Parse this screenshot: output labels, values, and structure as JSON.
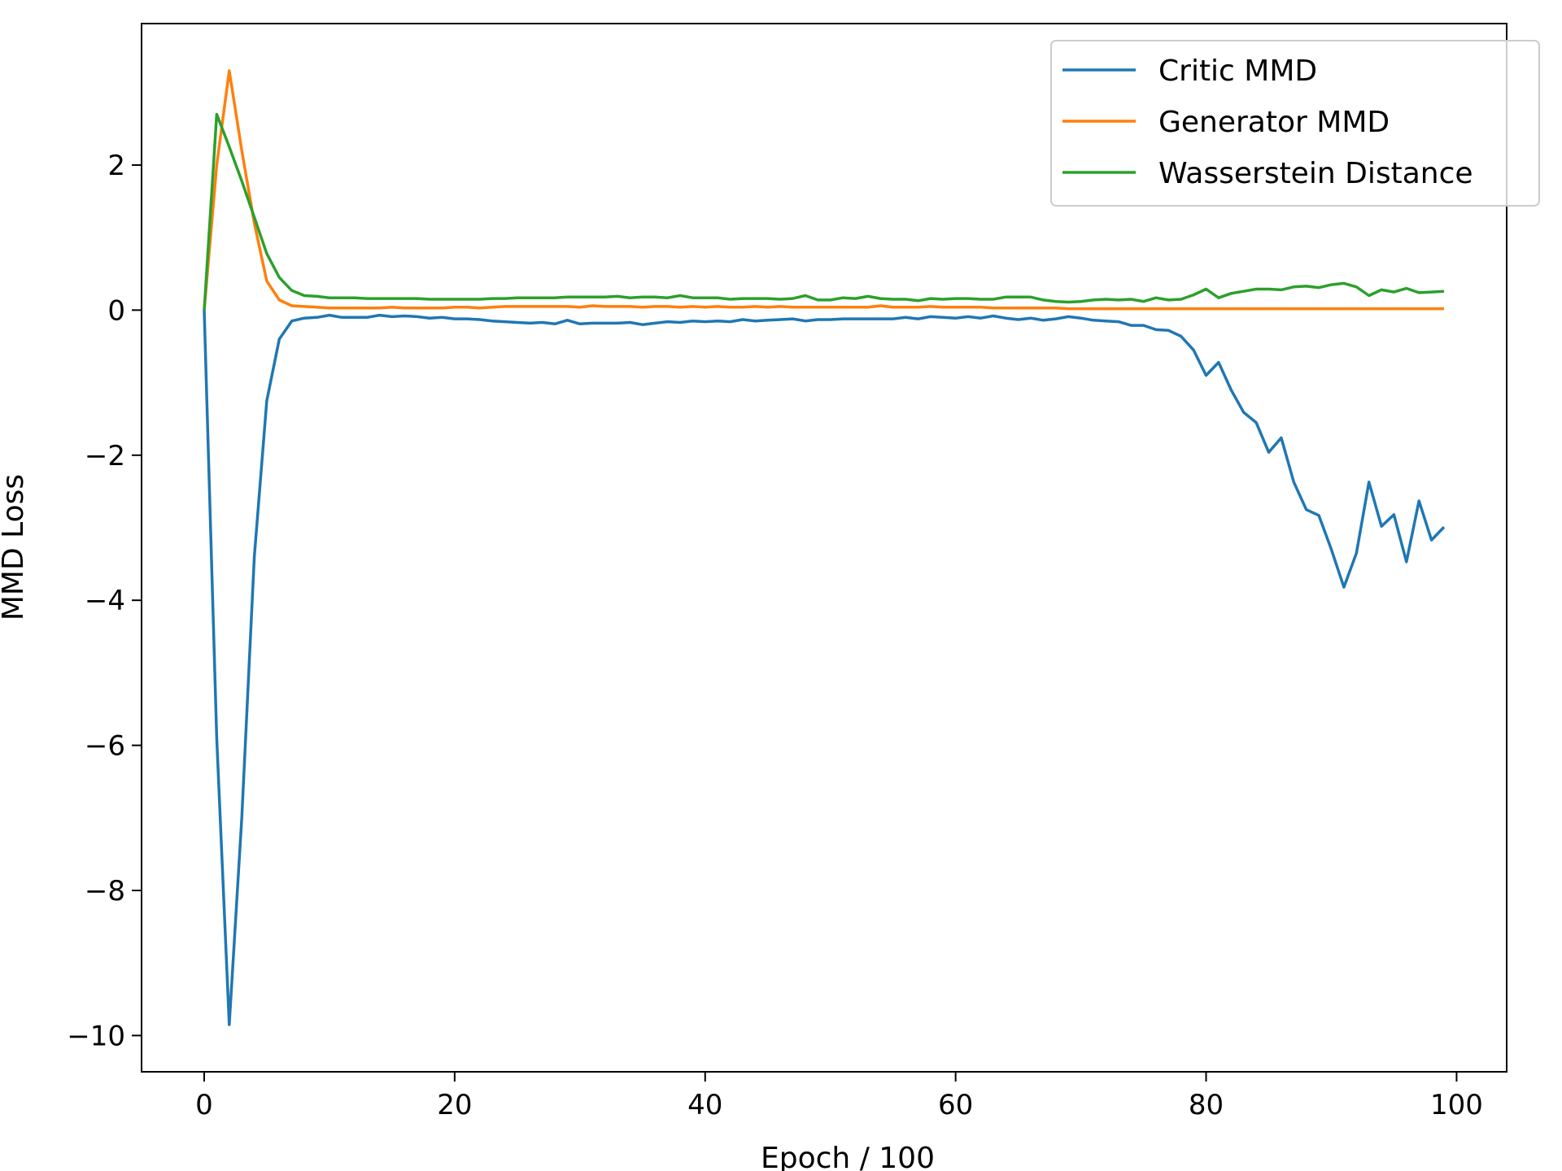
{
  "chart_data": {
    "type": "line",
    "title": "",
    "xlabel": "Epoch / 100",
    "ylabel": "MMD Loss",
    "xlim": [
      -5,
      104
    ],
    "ylim": [
      -10.5,
      3.95
    ],
    "xticks": [
      0,
      20,
      40,
      60,
      80,
      100
    ],
    "yticks": [
      2,
      0,
      -2,
      -4,
      -6,
      -8,
      -10
    ],
    "grid": false,
    "legend": "top-right",
    "x": [
      0,
      1,
      2,
      3,
      4,
      5,
      6,
      7,
      8,
      9,
      10,
      11,
      12,
      13,
      14,
      15,
      16,
      17,
      18,
      19,
      20,
      21,
      22,
      23,
      24,
      25,
      26,
      27,
      28,
      29,
      30,
      31,
      32,
      33,
      34,
      35,
      36,
      37,
      38,
      39,
      40,
      41,
      42,
      43,
      44,
      45,
      46,
      47,
      48,
      49,
      50,
      51,
      52,
      53,
      54,
      55,
      56,
      57,
      58,
      59,
      60,
      61,
      62,
      63,
      64,
      65,
      66,
      67,
      68,
      69,
      70,
      71,
      72,
      73,
      74,
      75,
      76,
      77,
      78,
      79,
      80,
      81,
      82,
      83,
      84,
      85,
      86,
      87,
      88,
      89,
      90,
      91,
      92,
      93,
      94,
      95,
      96,
      97,
      98,
      99
    ],
    "series": [
      {
        "name": "Critic MMD",
        "color": "#1f77b4",
        "values": [
          0,
          -5.9,
          -9.85,
          -7.0,
          -3.4,
          -1.25,
          -0.4,
          -0.15,
          -0.11,
          -0.1,
          -0.07,
          -0.1,
          -0.1,
          -0.1,
          -0.07,
          -0.09,
          -0.08,
          -0.09,
          -0.11,
          -0.1,
          -0.12,
          -0.12,
          -0.13,
          -0.15,
          -0.16,
          -0.17,
          -0.18,
          -0.17,
          -0.19,
          -0.14,
          -0.19,
          -0.18,
          -0.18,
          -0.18,
          -0.17,
          -0.2,
          -0.18,
          -0.16,
          -0.17,
          -0.15,
          -0.16,
          -0.15,
          -0.16,
          -0.13,
          -0.15,
          -0.14,
          -0.13,
          -0.12,
          -0.15,
          -0.13,
          -0.13,
          -0.12,
          -0.12,
          -0.12,
          -0.12,
          -0.12,
          -0.1,
          -0.12,
          -0.09,
          -0.1,
          -0.11,
          -0.09,
          -0.11,
          -0.08,
          -0.11,
          -0.13,
          -0.11,
          -0.14,
          -0.12,
          -0.09,
          -0.11,
          -0.14,
          -0.15,
          -0.16,
          -0.21,
          -0.21,
          -0.27,
          -0.28,
          -0.36,
          -0.55,
          -0.9,
          -0.72,
          -1.1,
          -1.41,
          -1.55,
          -1.96,
          -1.76,
          -2.37,
          -2.75,
          -2.83,
          -3.3,
          -3.82,
          -3.35,
          -2.37,
          -2.98,
          -2.82,
          -3.47,
          -2.63,
          -3.17,
          -2.99
        ]
      },
      {
        "name": "Generator MMD",
        "color": "#ff7f0e",
        "values": [
          0,
          2.0,
          3.3,
          2.2,
          1.2,
          0.4,
          0.14,
          0.06,
          0.05,
          0.04,
          0.03,
          0.03,
          0.03,
          0.03,
          0.03,
          0.04,
          0.03,
          0.03,
          0.03,
          0.03,
          0.04,
          0.04,
          0.03,
          0.04,
          0.05,
          0.05,
          0.05,
          0.05,
          0.05,
          0.05,
          0.04,
          0.06,
          0.05,
          0.05,
          0.05,
          0.04,
          0.05,
          0.05,
          0.04,
          0.05,
          0.04,
          0.05,
          0.04,
          0.04,
          0.05,
          0.04,
          0.05,
          0.04,
          0.04,
          0.04,
          0.04,
          0.04,
          0.04,
          0.04,
          0.06,
          0.04,
          0.04,
          0.04,
          0.05,
          0.04,
          0.04,
          0.04,
          0.04,
          0.03,
          0.03,
          0.03,
          0.03,
          0.03,
          0.03,
          0.02,
          0.02,
          0.02,
          0.02,
          0.02,
          0.02,
          0.02,
          0.02,
          0.02,
          0.02,
          0.02,
          0.02,
          0.02,
          0.02,
          0.02,
          0.02,
          0.02,
          0.02,
          0.02,
          0.02,
          0.02,
          0.02,
          0.02,
          0.02,
          0.02,
          0.02,
          0.02,
          0.02,
          0.02,
          0.02,
          0.02
        ]
      },
      {
        "name": "Wasserstein Distance",
        "color": "#2ca02c",
        "values": [
          0,
          2.7,
          2.25,
          1.78,
          1.28,
          0.78,
          0.45,
          0.27,
          0.2,
          0.19,
          0.17,
          0.17,
          0.17,
          0.16,
          0.16,
          0.16,
          0.16,
          0.16,
          0.15,
          0.15,
          0.15,
          0.15,
          0.15,
          0.16,
          0.16,
          0.17,
          0.17,
          0.17,
          0.17,
          0.18,
          0.18,
          0.18,
          0.18,
          0.19,
          0.17,
          0.18,
          0.18,
          0.17,
          0.2,
          0.17,
          0.17,
          0.17,
          0.15,
          0.16,
          0.16,
          0.16,
          0.15,
          0.16,
          0.2,
          0.14,
          0.14,
          0.17,
          0.16,
          0.19,
          0.16,
          0.15,
          0.15,
          0.13,
          0.16,
          0.15,
          0.16,
          0.16,
          0.15,
          0.15,
          0.18,
          0.18,
          0.18,
          0.14,
          0.12,
          0.11,
          0.12,
          0.14,
          0.15,
          0.14,
          0.15,
          0.12,
          0.17,
          0.14,
          0.15,
          0.21,
          0.29,
          0.17,
          0.23,
          0.26,
          0.29,
          0.29,
          0.28,
          0.32,
          0.33,
          0.31,
          0.35,
          0.37,
          0.32,
          0.2,
          0.28,
          0.25,
          0.3,
          0.24,
          0.25,
          0.26
        ]
      }
    ]
  }
}
